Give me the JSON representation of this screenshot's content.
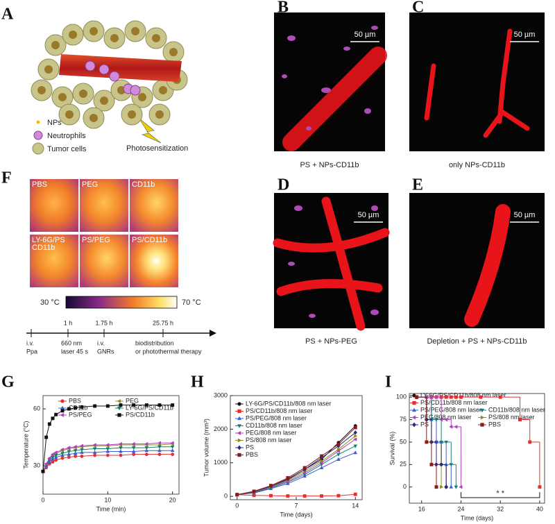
{
  "panel_labels": [
    "A",
    "B",
    "C",
    "F",
    "D",
    "E",
    "G",
    "H",
    "I"
  ],
  "schematic": {
    "legend": [
      "NPs",
      "Neutrophils",
      "Tumor cells"
    ],
    "annotation": "Photosensitization"
  },
  "images": [
    {
      "caption": "PS + NPs-CD11b",
      "scale": "50 µm"
    },
    {
      "caption": "only NPs-CD11b",
      "scale": "50 µm"
    },
    {
      "caption": "PS + NPs-PEG",
      "scale": "50 µm"
    },
    {
      "caption": "Depletion + PS + NPs-CD11b",
      "scale": "50 µm"
    }
  ],
  "thermal": {
    "labels": [
      [
        "PBS"
      ],
      [
        "PEG"
      ],
      [
        "CD11b"
      ],
      [
        "LY-6G/PS",
        "CD11b"
      ],
      [
        "PS/PEG"
      ],
      [
        "PS/CD11b"
      ]
    ],
    "scale_min": "30 °C",
    "scale_max": "70 °C"
  },
  "timeline": {
    "above": [
      "1 h",
      "1.75 h",
      "25.75 h"
    ],
    "below": [
      [
        "i.v.",
        "Ppa"
      ],
      [
        "660 nm",
        "laser 45 s"
      ],
      [
        "i.v.",
        "GNRs"
      ],
      [
        "biodistribution",
        "or photothermal therapy"
      ]
    ]
  },
  "chart_data": [
    {
      "type": "line",
      "xlabel": "Time (min)",
      "ylabel": "Temperature (°C)",
      "x": [
        0,
        0.5,
        1,
        1.5,
        2,
        3,
        4,
        5,
        6,
        8,
        10,
        12,
        14,
        16,
        18,
        20
      ],
      "xlim": [
        0,
        21
      ],
      "xticks": [
        0,
        10,
        20
      ],
      "ylim": [
        15,
        67
      ],
      "yticks": [
        30,
        60
      ],
      "series": [
        {
          "name": "PBS",
          "color": "#e03030",
          "marker": "circle",
          "values": [
            27,
            29,
            31,
            32,
            33,
            34,
            34.5,
            35,
            35,
            35.5,
            35.5,
            35.5,
            36,
            36,
            36,
            36
          ]
        },
        {
          "name": "PEG",
          "color": "#8c8c24",
          "marker": "triangle-left",
          "values": [
            27,
            31,
            33.5,
            35.5,
            36.5,
            38,
            39,
            39.5,
            40,
            40.5,
            40.5,
            41,
            41,
            41,
            41,
            41.5
          ]
        },
        {
          "name": "CD11b",
          "color": "#3b5bdb",
          "marker": "triangle-up",
          "values": [
            27,
            30,
            32,
            33.5,
            34.5,
            35.5,
            36,
            36.5,
            37,
            37,
            37.5,
            37.5,
            37.5,
            38,
            38,
            38
          ]
        },
        {
          "name": "LY-6G/PS/CD11b",
          "color": "#108060",
          "marker": "triangle-down",
          "values": [
            27,
            30.5,
            33,
            34.5,
            35.5,
            36.5,
            37.5,
            38,
            38.5,
            39,
            39,
            39.5,
            39.5,
            39.5,
            40,
            40
          ]
        },
        {
          "name": "PS/PEG",
          "color": "#b040c0",
          "marker": "triangle-left",
          "values": [
            27,
            31,
            34,
            36,
            37,
            38.5,
            39.5,
            40,
            40.5,
            41,
            41,
            41.5,
            41.5,
            41.5,
            42,
            42
          ]
        },
        {
          "name": "PS/CD11b",
          "color": "#111111",
          "marker": "square",
          "values": [
            27,
            45,
            52,
            55,
            57,
            59,
            60,
            60.5,
            61,
            61.5,
            61.5,
            62,
            62,
            62,
            62,
            62
          ]
        }
      ]
    },
    {
      "type": "line",
      "xlabel": "Time (days)",
      "ylabel": "Tumor volume (mm³)",
      "x": [
        0,
        2,
        4,
        6,
        8,
        10,
        12,
        14
      ],
      "xlim": [
        -0.8,
        14.8
      ],
      "xticks": [
        0,
        7,
        14
      ],
      "ylim": [
        -100,
        3000
      ],
      "yticks": [
        0,
        1000,
        2000,
        3000
      ],
      "series": [
        {
          "name": "LY-6G/PS/CD11b/808 nm laser",
          "color": "#111111",
          "marker": "circle",
          "values": [
            50,
            150,
            300,
            500,
            800,
            1100,
            1600,
            2100
          ]
        },
        {
          "name": "PS/CD11b/808 nm laser",
          "color": "#e03030",
          "marker": "square",
          "values": [
            50,
            30,
            20,
            10,
            10,
            10,
            20,
            60
          ]
        },
        {
          "name": "PS/PEG/808 nm laser",
          "color": "#3b5bdb",
          "marker": "triangle-up",
          "values": [
            50,
            100,
            230,
            380,
            600,
            850,
            1100,
            1300
          ]
        },
        {
          "name": "CD11b/808 nm laser",
          "color": "#108080",
          "marker": "triangle-down",
          "values": [
            50,
            110,
            250,
            420,
            650,
            950,
            1250,
            1500
          ]
        },
        {
          "name": "PEG/808 nm laser",
          "color": "#b040c0",
          "marker": "triangle-left",
          "values": [
            50,
            120,
            270,
            450,
            700,
            1000,
            1350,
            1700
          ]
        },
        {
          "name": "PS/808 nm laser",
          "color": "#8c8c24",
          "marker": "triangle-right",
          "values": [
            50,
            130,
            280,
            480,
            750,
            1050,
            1400,
            1800
          ]
        },
        {
          "name": "PS",
          "color": "#2a2a80",
          "marker": "diamond",
          "values": [
            50,
            140,
            300,
            520,
            800,
            1150,
            1500,
            1900
          ]
        },
        {
          "name": "PBS",
          "color": "#8b1a1a",
          "marker": "square",
          "values": [
            50,
            150,
            320,
            550,
            850,
            1200,
            1550,
            2050
          ]
        }
      ]
    },
    {
      "type": "step",
      "xlabel": "Time (days)",
      "ylabel": "Survival (%)",
      "x": [
        15,
        17,
        18,
        19,
        20,
        21,
        22,
        23,
        24,
        28,
        32,
        36,
        38,
        40
      ],
      "xlim": [
        13.5,
        41
      ],
      "xticks": [
        16,
        24,
        32,
        40
      ],
      "ylim": [
        -18,
        104
      ],
      "yticks": [
        0,
        25,
        50,
        75,
        100
      ],
      "annotation": "* *",
      "bracket": [
        24,
        40
      ],
      "series": [
        {
          "name": "LY-6G/PS/CD11b/808 nm laser",
          "color": "#111111",
          "marker": "circle",
          "values": [
            100,
            75,
            50,
            50,
            25,
            0,
            null,
            null,
            null,
            null,
            null,
            null,
            null,
            null
          ]
        },
        {
          "name": "PS/CD11b/808 nm laser",
          "color": "#e03030",
          "marker": "square",
          "values": [
            100,
            100,
            100,
            100,
            100,
            100,
            100,
            100,
            100,
            100,
            100,
            75,
            50,
            0
          ]
        },
        {
          "name": "PS/PEG/808 nm laser",
          "color": "#3b5bdb",
          "marker": "triangle-up",
          "values": [
            100,
            100,
            75,
            50,
            50,
            25,
            0,
            null,
            null,
            null,
            null,
            null,
            null,
            null
          ]
        },
        {
          "name": "CD11b/808 nm laser",
          "color": "#108080",
          "marker": "triangle-down",
          "values": [
            100,
            100,
            75,
            75,
            50,
            50,
            25,
            0,
            null,
            null,
            null,
            null,
            null,
            null
          ]
        },
        {
          "name": "PEG/808 nm laser",
          "color": "#b040c0",
          "marker": "triangle-left",
          "values": [
            100,
            100,
            100,
            100,
            75,
            75,
            67,
            67,
            0,
            null,
            null,
            null,
            null,
            null
          ]
        },
        {
          "name": "PS/808 nm laser",
          "color": "#8c8c24",
          "marker": "triangle-right",
          "values": [
            100,
            75,
            50,
            25,
            0,
            null,
            null,
            null,
            null,
            null,
            null,
            null,
            null,
            null
          ]
        },
        {
          "name": "PS",
          "color": "#2a2a80",
          "marker": "diamond",
          "values": [
            100,
            75,
            50,
            25,
            25,
            0,
            null,
            null,
            null,
            null,
            null,
            null,
            null,
            null
          ]
        },
        {
          "name": "PBS",
          "color": "#8b1a1a",
          "marker": "square",
          "values": [
            100,
            50,
            25,
            0,
            null,
            null,
            null,
            null,
            null,
            null,
            null,
            null,
            null,
            null
          ]
        }
      ]
    }
  ]
}
